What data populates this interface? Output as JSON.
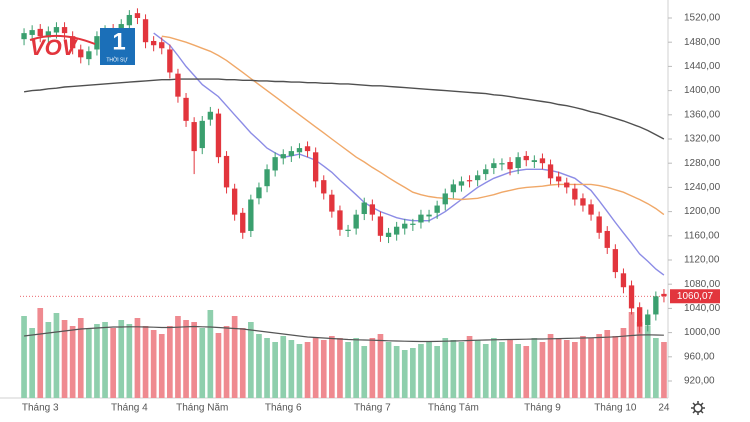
{
  "logo": {
    "brand": "VOV",
    "channel": "1",
    "tagline": "THỜI SỰ"
  },
  "chart_data": {
    "type": "candlestick",
    "up_color": "#3a9f6e",
    "down_color": "#e2353d",
    "volume_up_color": "#8fcfad",
    "volume_down_color": "#ef8a90",
    "categories": [
      null,
      null,
      "Tháng 3",
      null,
      null,
      null,
      null,
      null,
      null,
      null,
      null,
      null,
      null,
      "Tháng 4",
      null,
      null,
      null,
      null,
      null,
      null,
      null,
      null,
      "Tháng Năm",
      null,
      null,
      null,
      null,
      null,
      null,
      null,
      null,
      null,
      "Tháng 6",
      null,
      null,
      null,
      null,
      null,
      null,
      null,
      null,
      null,
      null,
      "Tháng 7",
      null,
      null,
      null,
      null,
      null,
      null,
      null,
      null,
      null,
      "Tháng Tám",
      null,
      null,
      null,
      null,
      null,
      null,
      null,
      null,
      null,
      null,
      "Tháng 9",
      null,
      null,
      null,
      null,
      null,
      null,
      null,
      null,
      "Tháng 10",
      null,
      null,
      null,
      null,
      null,
      "24"
    ],
    "open": [
      1485,
      1492,
      1502,
      1488,
      1496,
      1505,
      1490,
      1468,
      1452,
      1468,
      1488,
      1502,
      1495,
      1508,
      1528,
      1518,
      1482,
      1480,
      1468,
      1428,
      1388,
      1348,
      1305,
      1352,
      1362,
      1292,
      1238,
      1198,
      1168,
      1222,
      1242,
      1268,
      1288,
      1292,
      1298,
      1308,
      1298,
      1252,
      1228,
      1202,
      1168,
      1172,
      1196,
      1212,
      1192,
      1158,
      1162,
      1172,
      1178,
      1182,
      1192,
      1198,
      1212,
      1232,
      1243,
      1252,
      1252,
      1262,
      1272,
      1278,
      1282,
      1272,
      1292,
      1282,
      1288,
      1278,
      1258,
      1248,
      1238,
      1222,
      1212,
      1192,
      1168,
      1138,
      1098,
      1078,
      1042,
      1012,
      1030,
      1064
    ],
    "high": [
      1503,
      1508,
      1510,
      1506,
      1513,
      1513,
      1498,
      1476,
      1473,
      1498,
      1508,
      1510,
      1518,
      1533,
      1536,
      1526,
      1490,
      1488,
      1476,
      1436,
      1396,
      1356,
      1358,
      1373,
      1370,
      1300,
      1246,
      1206,
      1228,
      1248,
      1278,
      1298,
      1303,
      1308,
      1313,
      1316,
      1306,
      1260,
      1236,
      1210,
      1178,
      1203,
      1223,
      1220,
      1200,
      1173,
      1183,
      1188,
      1188,
      1203,
      1203,
      1218,
      1238,
      1253,
      1258,
      1260,
      1268,
      1278,
      1288,
      1288,
      1290,
      1298,
      1300,
      1293,
      1296,
      1286,
      1266,
      1256,
      1246,
      1230,
      1220,
      1200,
      1176,
      1146,
      1106,
      1086,
      1050,
      1038,
      1068,
      1072
    ],
    "low": [
      1475,
      1482,
      1480,
      1478,
      1486,
      1485,
      1460,
      1445,
      1442,
      1458,
      1478,
      1485,
      1485,
      1498,
      1510,
      1470,
      1465,
      1460,
      1420,
      1380,
      1340,
      1262,
      1295,
      1342,
      1280,
      1230,
      1185,
      1155,
      1158,
      1212,
      1232,
      1258,
      1278,
      1282,
      1288,
      1290,
      1240,
      1220,
      1190,
      1160,
      1158,
      1162,
      1186,
      1185,
      1150,
      1148,
      1152,
      1162,
      1168,
      1172,
      1182,
      1188,
      1202,
      1222,
      1233,
      1240,
      1242,
      1252,
      1262,
      1268,
      1260,
      1262,
      1275,
      1272,
      1270,
      1245,
      1240,
      1230,
      1210,
      1200,
      1185,
      1155,
      1130,
      1090,
      1065,
      1030,
      1000,
      1002,
      1020,
      1050
    ],
    "close": [
      1495,
      1500,
      1490,
      1498,
      1505,
      1495,
      1470,
      1455,
      1465,
      1490,
      1500,
      1495,
      1510,
      1525,
      1520,
      1480,
      1475,
      1470,
      1430,
      1390,
      1350,
      1300,
      1350,
      1365,
      1290,
      1240,
      1195,
      1165,
      1220,
      1240,
      1270,
      1290,
      1295,
      1300,
      1305,
      1300,
      1250,
      1230,
      1200,
      1170,
      1170,
      1195,
      1215,
      1195,
      1160,
      1165,
      1175,
      1180,
      1180,
      1195,
      1195,
      1210,
      1230,
      1245,
      1250,
      1250,
      1260,
      1270,
      1280,
      1280,
      1270,
      1290,
      1285,
      1285,
      1280,
      1255,
      1250,
      1240,
      1220,
      1210,
      1195,
      1165,
      1140,
      1100,
      1075,
      1040,
      1010,
      1030,
      1060,
      1060.07
    ],
    "volume": [
      820,
      700,
      900,
      760,
      850,
      780,
      720,
      800,
      690,
      740,
      760,
      700,
      780,
      740,
      800,
      720,
      680,
      640,
      720,
      820,
      780,
      760,
      700,
      880,
      650,
      720,
      820,
      700,
      760,
      640,
      600,
      560,
      620,
      580,
      540,
      560,
      600,
      580,
      620,
      600,
      560,
      600,
      520,
      600,
      640,
      560,
      520,
      480,
      500,
      540,
      560,
      520,
      600,
      580,
      560,
      620,
      580,
      540,
      600,
      560,
      580,
      540,
      520,
      600,
      560,
      640,
      600,
      580,
      560,
      620,
      600,
      640,
      680,
      620,
      700,
      860,
      760,
      720,
      600,
      560
    ],
    "volume_lim": [
      0,
      1000
    ],
    "volume_ma": {
      "color": "#555555",
      "values": [
        620,
        630,
        640,
        650,
        660,
        670,
        680,
        690,
        695,
        700,
        705,
        710,
        710,
        712,
        712,
        710,
        708,
        705,
        705,
        708,
        712,
        715,
        712,
        710,
        705,
        700,
        695,
        690,
        680,
        670,
        660,
        650,
        640,
        630,
        620,
        610,
        605,
        600,
        595,
        590,
        585,
        582,
        580,
        578,
        575,
        572,
        570,
        568,
        566,
        565,
        565,
        566,
        568,
        570,
        572,
        575,
        578,
        580,
        582,
        584,
        585,
        586,
        588,
        590,
        590,
        592,
        594,
        596,
        598,
        600,
        602,
        605,
        608,
        612,
        618,
        625,
        630,
        632,
        630,
        628
      ]
    },
    "ma_lines": [
      {
        "color": "#8c8ce6",
        "values": [
          null,
          null,
          null,
          null,
          null,
          null,
          null,
          null,
          null,
          null,
          null,
          null,
          null,
          null,
          null,
          null,
          1495,
          1485,
          1475,
          1458,
          1440,
          1425,
          1410,
          1400,
          1390,
          1375,
          1360,
          1345,
          1330,
          1318,
          1305,
          1297,
          1290,
          1292,
          1295,
          1290,
          1285,
          1275,
          1265,
          1252,
          1240,
          1228,
          1215,
          1207,
          1200,
          1195,
          1190,
          1187,
          1185,
          1185,
          1185,
          1192,
          1200,
          1210,
          1220,
          1230,
          1240,
          1248,
          1255,
          1260,
          1265,
          1268,
          1270,
          1270,
          1270,
          1268,
          1265,
          1260,
          1255,
          1245,
          1235,
          1218,
          1200,
          1182,
          1165,
          1148,
          1130,
          1118,
          1105,
          1095
        ]
      },
      {
        "color": "#f0a868",
        "values": [
          null,
          null,
          null,
          null,
          null,
          null,
          null,
          null,
          null,
          null,
          null,
          null,
          null,
          null,
          null,
          null,
          null,
          1490,
          1488,
          1484,
          1480,
          1475,
          1470,
          1465,
          1458,
          1450,
          1440,
          1430,
          1420,
          1410,
          1400,
          1390,
          1380,
          1370,
          1360,
          1350,
          1340,
          1330,
          1320,
          1310,
          1300,
          1290,
          1282,
          1273,
          1265,
          1256,
          1248,
          1240,
          1232,
          1228,
          1225,
          1223,
          1222,
          1221,
          1220,
          1221,
          1222,
          1225,
          1228,
          1232,
          1235,
          1238,
          1240,
          1241,
          1242,
          1244,
          1245,
          1245,
          1245,
          1245,
          1245,
          1243,
          1240,
          1236,
          1232,
          1226,
          1220,
          1213,
          1205,
          1195
        ]
      },
      {
        "color": "#505050",
        "values": [
          1398,
          1400,
          1401,
          1403,
          1404,
          1406,
          1407,
          1408,
          1409,
          1410,
          1411,
          1412,
          1413,
          1414,
          1415,
          1416,
          1417,
          1418,
          1418,
          1419,
          1419,
          1419,
          1419,
          1419,
          1419,
          1418,
          1418,
          1417,
          1417,
          1416,
          1416,
          1415,
          1415,
          1414,
          1414,
          1413,
          1413,
          1412,
          1412,
          1411,
          1411,
          1410,
          1409,
          1408,
          1408,
          1407,
          1406,
          1405,
          1404,
          1403,
          1402,
          1401,
          1400,
          1399,
          1398,
          1397,
          1396,
          1395,
          1393,
          1392,
          1390,
          1388,
          1386,
          1384,
          1382,
          1380,
          1377,
          1375,
          1372,
          1369,
          1365,
          1362,
          1358,
          1354,
          1350,
          1345,
          1340,
          1334,
          1327,
          1320
        ]
      }
    ],
    "last_price": {
      "value": 1060.07,
      "label": "1060,07"
    },
    "ylim": [
      920,
      1520
    ],
    "yticks": [
      {
        "value": 1520,
        "label": "1520,00"
      },
      {
        "value": 1480,
        "label": "1480,00"
      },
      {
        "value": 1440,
        "label": "1440,00"
      },
      {
        "value": 1400,
        "label": "1400,00"
      },
      {
        "value": 1360,
        "label": "1360,00"
      },
      {
        "value": 1320,
        "label": "1320,00"
      },
      {
        "value": 1280,
        "label": "1280,00"
      },
      {
        "value": 1240,
        "label": "1240,00"
      },
      {
        "value": 1200,
        "label": "1200,00"
      },
      {
        "value": 1160,
        "label": "1160,00"
      },
      {
        "value": 1120,
        "label": "1120,00"
      },
      {
        "value": 1080,
        "label": "1080,00"
      },
      {
        "value": 1040,
        "label": "1040,00"
      },
      {
        "value": 1000,
        "label": "1000,00"
      },
      {
        "value": 960,
        "label": "960,00"
      },
      {
        "value": 920,
        "label": "920,00"
      }
    ]
  }
}
